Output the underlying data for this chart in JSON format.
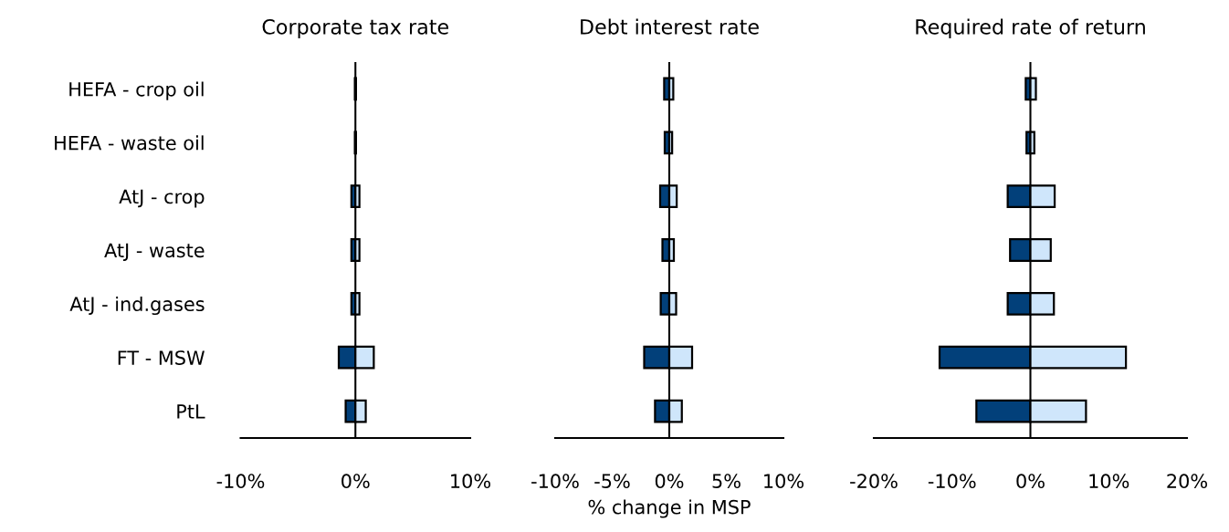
{
  "chart_data": [
    {
      "type": "bar",
      "orientation": "horizontal",
      "title": "Corporate tax rate",
      "categories": [
        "HEFA - crop oil",
        "HEFA - waste oil",
        "AtJ - crop",
        "AtJ - waste",
        "AtJ - ind.gases",
        "FT - MSW",
        "PtL"
      ],
      "series": [
        {
          "color": "#02407a",
          "values": [
            -0.05,
            -0.05,
            -0.35,
            -0.35,
            -0.35,
            -1.45,
            -0.85
          ]
        },
        {
          "color": "#cfe6fb",
          "values": [
            0.05,
            0.05,
            0.35,
            0.35,
            0.35,
            1.6,
            0.9
          ]
        }
      ],
      "stacked": true,
      "xlim": [
        -10,
        10
      ],
      "xticks": [
        {
          "value": -10,
          "label": "-10%"
        },
        {
          "value": 0,
          "label": "0%"
        },
        {
          "value": 10,
          "label": "10%"
        }
      ],
      "ref_lines": [
        {
          "axis": "x",
          "value": 0,
          "color": "#000000"
        }
      ],
      "grid": false
    },
    {
      "type": "bar",
      "orientation": "horizontal",
      "title": "Debt interest rate",
      "xlabel": "% change in MSP",
      "series": [
        {
          "color": "#02407a",
          "values": [
            -0.45,
            -0.4,
            -0.8,
            -0.6,
            -0.75,
            -2.2,
            -1.25
          ]
        },
        {
          "color": "#cfe6fb",
          "values": [
            0.35,
            0.25,
            0.65,
            0.4,
            0.6,
            2.0,
            1.1
          ]
        }
      ],
      "stacked": true,
      "xlim": [
        -10,
        10
      ],
      "xticks": [
        {
          "value": -10,
          "label": "-10%"
        },
        {
          "value": -5,
          "label": "-5%"
        },
        {
          "value": 0,
          "label": "0%"
        },
        {
          "value": 5,
          "label": "5%"
        },
        {
          "value": 10,
          "label": "10%"
        }
      ],
      "ref_lines": [
        {
          "axis": "x",
          "value": 0,
          "color": "#000000"
        }
      ],
      "grid": false
    },
    {
      "type": "bar",
      "orientation": "horizontal",
      "title": "Required rate of return",
      "series": [
        {
          "color": "#02407a",
          "values": [
            -0.6,
            -0.5,
            -2.9,
            -2.6,
            -2.9,
            -11.6,
            -6.9
          ]
        },
        {
          "color": "#cfe6fb",
          "values": [
            0.7,
            0.5,
            3.1,
            2.6,
            3.0,
            12.2,
            7.1
          ]
        }
      ],
      "stacked": true,
      "xlim": [
        -20,
        20
      ],
      "xticks": [
        {
          "value": -20,
          "label": "-20%"
        },
        {
          "value": -10,
          "label": "-10%"
        },
        {
          "value": 0,
          "label": "0%"
        },
        {
          "value": 10,
          "label": "10%"
        },
        {
          "value": 20,
          "label": "20%"
        }
      ],
      "ref_lines": [
        {
          "axis": "x",
          "value": 0,
          "color": "#000000"
        }
      ],
      "grid": false
    }
  ]
}
